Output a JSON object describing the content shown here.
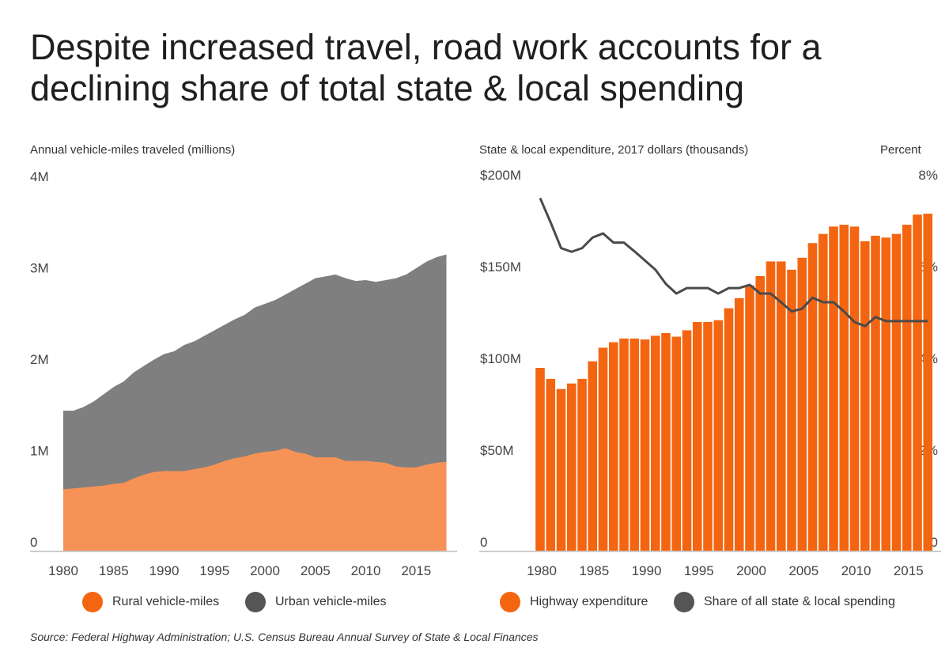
{
  "title": "Despite increased travel, road work accounts for a declining share of total state & local spending",
  "source": "Source: Federal Highway Administration; U.S. Census Bureau Annual Survey of State & Local Finances",
  "colors": {
    "rural": "#f79256",
    "urban": "#7f7f7f",
    "bar": "#f46511",
    "line": "#4a4a4a",
    "legend_urban": "#555555"
  },
  "chart_data": [
    {
      "type": "area",
      "stacked": true,
      "ylabel": "Annual vehicle-miles traveled (millions)",
      "ylim": [
        0,
        4
      ],
      "y_ticks": [
        {
          "v": 0,
          "label": "0"
        },
        {
          "v": 1,
          "label": "1M"
        },
        {
          "v": 2,
          "label": "2M"
        },
        {
          "v": 3,
          "label": "3M"
        },
        {
          "v": 4,
          "label": "4M"
        }
      ],
      "x_ticks": [
        "1980",
        "1985",
        "1990",
        "1995",
        "2000",
        "2005",
        "2010",
        "2015"
      ],
      "x": [
        1980,
        1981,
        1982,
        1983,
        1984,
        1985,
        1986,
        1987,
        1988,
        1989,
        1990,
        1991,
        1992,
        1993,
        1994,
        1995,
        1996,
        1997,
        1998,
        1999,
        2000,
        2001,
        2002,
        2003,
        2004,
        2005,
        2006,
        2007,
        2008,
        2009,
        2010,
        2011,
        2012,
        2013,
        2014,
        2015,
        2016,
        2017,
        2018
      ],
      "series": [
        {
          "name": "Rural vehicle-miles",
          "values": [
            0.68,
            0.69,
            0.7,
            0.71,
            0.72,
            0.74,
            0.75,
            0.8,
            0.84,
            0.87,
            0.88,
            0.88,
            0.88,
            0.9,
            0.92,
            0.95,
            0.99,
            1.02,
            1.04,
            1.07,
            1.09,
            1.1,
            1.13,
            1.09,
            1.07,
            1.03,
            1.03,
            1.03,
            0.99,
            0.99,
            0.99,
            0.98,
            0.97,
            0.93,
            0.92,
            0.92,
            0.95,
            0.97,
            0.98
          ]
        },
        {
          "name": "Urban vehicle-miles",
          "values": [
            0.86,
            0.85,
            0.88,
            0.93,
            1.0,
            1.06,
            1.11,
            1.16,
            1.19,
            1.23,
            1.28,
            1.31,
            1.38,
            1.4,
            1.44,
            1.47,
            1.49,
            1.52,
            1.55,
            1.6,
            1.62,
            1.65,
            1.68,
            1.78,
            1.86,
            1.96,
            1.98,
            2.0,
            2.0,
            1.97,
            1.98,
            1.97,
            2.0,
            2.06,
            2.11,
            2.18,
            2.22,
            2.25,
            2.27
          ]
        }
      ],
      "legend": "bottom"
    },
    {
      "type": "bar+line",
      "ylabel": "State & local expenditure, 2017 dollars (thousands)",
      "y2label": "Percent",
      "ylim": [
        0,
        200
      ],
      "y2lim": [
        0,
        8
      ],
      "y_ticks": [
        {
          "v": 0,
          "label": "0"
        },
        {
          "v": 50,
          "label": "$50M"
        },
        {
          "v": 100,
          "label": "$100M"
        },
        {
          "v": 150,
          "label": "$150M"
        },
        {
          "v": 200,
          "label": "$200M"
        }
      ],
      "y2_ticks": [
        {
          "v": 0,
          "label": "0"
        },
        {
          "v": 2,
          "label": "2%"
        },
        {
          "v": 4,
          "label": "4%"
        },
        {
          "v": 6,
          "label": "6%"
        },
        {
          "v": 8,
          "label": "8%"
        }
      ],
      "x_ticks": [
        "1980",
        "1985",
        "1990",
        "1995",
        "2000",
        "2005",
        "2010",
        "2015"
      ],
      "x": [
        1980,
        1981,
        1982,
        1983,
        1984,
        1985,
        1986,
        1987,
        1988,
        1989,
        1990,
        1991,
        1992,
        1993,
        1994,
        1995,
        1996,
        1997,
        1998,
        1999,
        2000,
        2001,
        2002,
        2003,
        2004,
        2005,
        2006,
        2007,
        2008,
        2009,
        2010,
        2011,
        2012,
        2013,
        2014,
        2015,
        2016,
        2017
      ],
      "series": [
        {
          "name": "Highway expenditure",
          "type": "bar",
          "values": [
            100,
            94,
            88.5,
            91.5,
            94,
            103.6,
            111,
            114,
            116,
            116,
            115.5,
            117.5,
            119,
            117,
            120.5,
            125,
            125,
            126,
            132.5,
            138,
            145,
            150,
            158,
            158,
            153.5,
            160,
            168,
            173,
            177,
            178,
            177,
            169,
            172,
            171,
            173,
            178,
            183.5,
            184
          ]
        },
        {
          "name": "Share of all state & local spending",
          "type": "line",
          "axis": "right",
          "values": [
            7.7,
            7.17,
            6.61,
            6.53,
            6.61,
            6.84,
            6.93,
            6.73,
            6.73,
            6.54,
            6.34,
            6.14,
            5.83,
            5.62,
            5.74,
            5.74,
            5.74,
            5.62,
            5.74,
            5.74,
            5.81,
            5.62,
            5.62,
            5.43,
            5.23,
            5.29,
            5.53,
            5.43,
            5.43,
            5.23,
            5.0,
            4.91,
            5.11,
            5.02,
            5.02,
            5.02,
            5.02,
            5.02
          ]
        }
      ],
      "legend": "bottom"
    }
  ]
}
